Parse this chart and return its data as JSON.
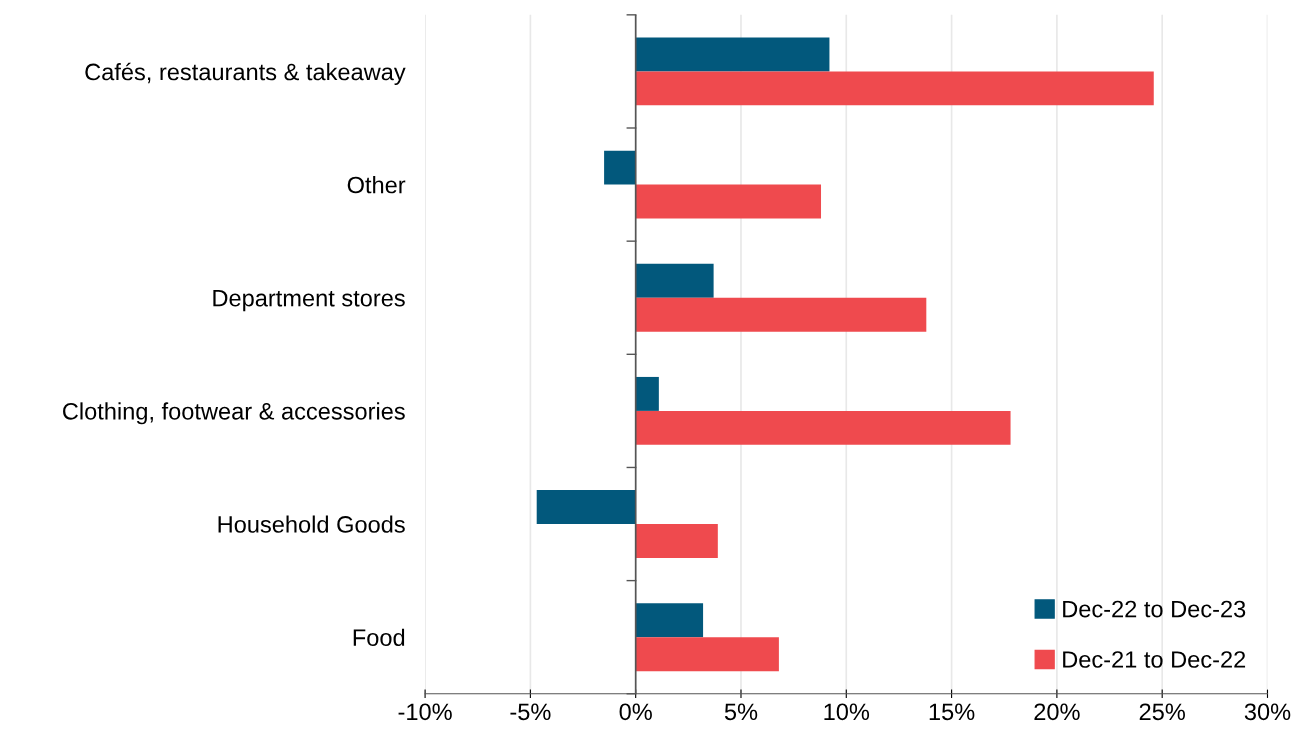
{
  "chart_data": {
    "type": "bar",
    "orientation": "horizontal",
    "categories": [
      "Cafés, restaurants & takeaway",
      "Other",
      "Department stores",
      "Clothing, footwear & accessories",
      "Household Goods",
      "Food"
    ],
    "series": [
      {
        "name": "Dec-22 to Dec-23",
        "color": "#02587c",
        "values": [
          9.2,
          -1.5,
          3.7,
          1.1,
          -4.7,
          3.2
        ]
      },
      {
        "name": "Dec-21 to Dec-22",
        "color": "#ef4a4e",
        "values": [
          24.6,
          8.8,
          13.8,
          17.8,
          3.9,
          6.8
        ]
      }
    ],
    "xlim": [
      -10,
      30
    ],
    "xticks": [
      {
        "value": -10,
        "label": "-10%"
      },
      {
        "value": -5,
        "label": "-5%"
      },
      {
        "value": 0,
        "label": "0%"
      },
      {
        "value": 5,
        "label": "5%"
      },
      {
        "value": 10,
        "label": "10%"
      },
      {
        "value": 15,
        "label": "15%"
      },
      {
        "value": 20,
        "label": "20%"
      },
      {
        "value": 25,
        "label": "25%"
      },
      {
        "value": 30,
        "label": "30%"
      }
    ],
    "grid": "x",
    "legend": "bottom right"
  }
}
